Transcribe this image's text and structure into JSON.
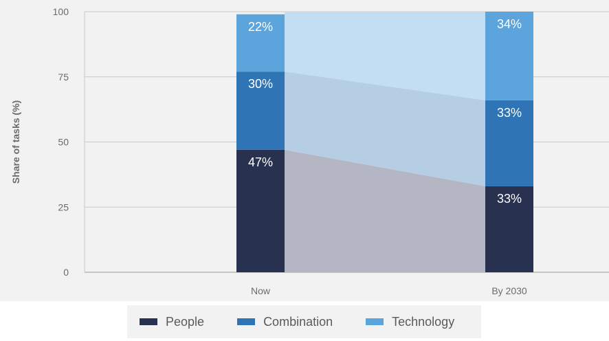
{
  "chart_data": {
    "type": "bar",
    "stacked": true,
    "categories": [
      "Now",
      "By 2030"
    ],
    "ylabel": "Share of tasks (%)",
    "ylim": [
      0,
      100
    ],
    "yticks": [
      "0",
      "25",
      "50",
      "75",
      "100"
    ],
    "grid": true,
    "legend_position": "bottom",
    "series": [
      {
        "name": "People",
        "values": [
          47,
          33
        ],
        "labels": [
          "47%",
          "33%"
        ],
        "color": "#283150"
      },
      {
        "name": "Combination",
        "values": [
          30,
          33
        ],
        "labels": [
          "30%",
          "33%"
        ],
        "color": "#2f75b5"
      },
      {
        "name": "Technology",
        "values": [
          22,
          34
        ],
        "labels": [
          "22%",
          "34%"
        ],
        "color": "#5ba4dc"
      }
    ]
  },
  "legend": {
    "items": [
      {
        "label": "People",
        "color": "#283150"
      },
      {
        "label": "Combination",
        "color": "#2f75b5"
      },
      {
        "label": "Technology",
        "color": "#5ba4dc"
      }
    ]
  }
}
